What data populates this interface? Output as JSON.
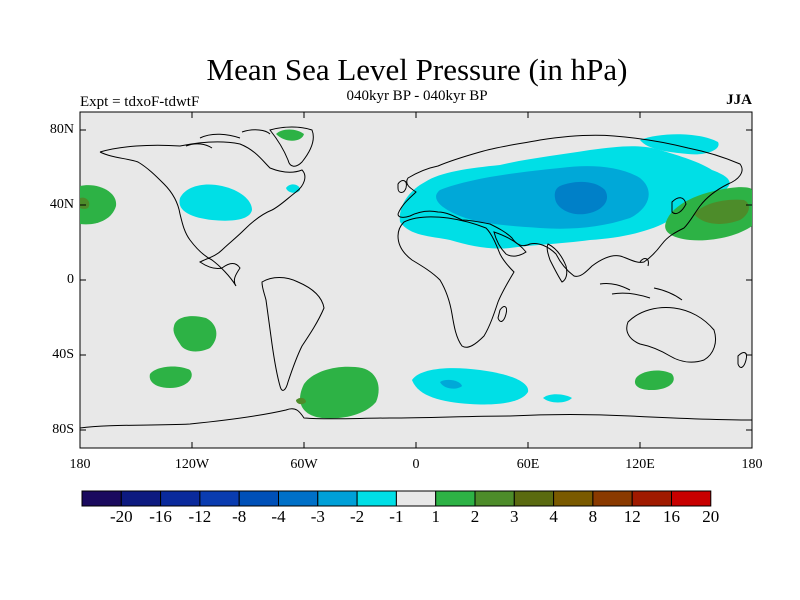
{
  "title": "Mean Sea Level Pressure (in hPa)",
  "subtitle": "040kyr BP - 040kyr BP",
  "experiment": "Expt = tdxoF-tdwtF",
  "season": "JJA",
  "colors": {
    "background": "#e8e8e8",
    "positive_1_2": "#2db245",
    "positive_2_3": "#4d8c2a",
    "negative_1_2": "#00dfe6",
    "negative_2_3": "#00a8d8",
    "negative_3_4": "#0080c8"
  },
  "axes": {
    "y_ticks": [
      "80N",
      "40N",
      "0",
      "40S",
      "80S"
    ],
    "x_ticks": [
      "180",
      "120W",
      "60W",
      "0",
      "60E",
      "120E",
      "180"
    ]
  },
  "colorbar": {
    "labels": [
      "-20",
      "-16",
      "-12",
      "-8",
      "-4",
      "-3",
      "-2",
      "-1",
      "1",
      "2",
      "3",
      "4",
      "8",
      "12",
      "16",
      "20"
    ],
    "colors": [
      "#1a0a5e",
      "#0d1a80",
      "#0a2a9c",
      "#0a3cb0",
      "#0050b8",
      "#0070c8",
      "#00a0d8",
      "#00dfe6",
      "#e8e8e8",
      "#2db245",
      "#4d8c2a",
      "#5a6a10",
      "#7a5a00",
      "#8a3a00",
      "#a01a00",
      "#c80000"
    ]
  }
}
